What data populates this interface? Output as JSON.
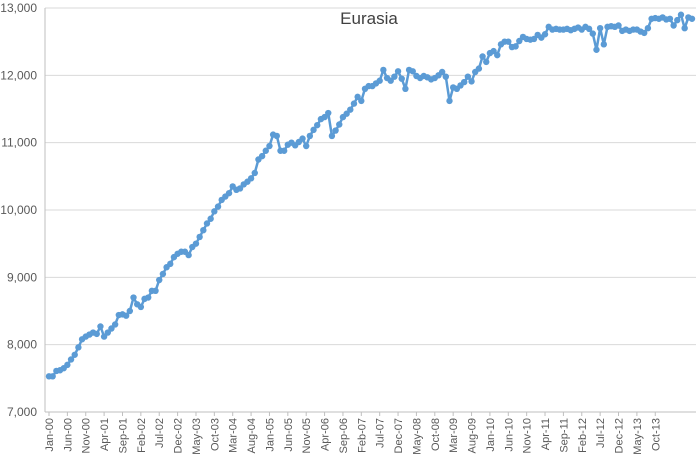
{
  "chart_data": {
    "type": "line",
    "title": "Eurasia",
    "xlabel": "",
    "ylabel": "",
    "ylim": [
      7000,
      13000
    ],
    "y_ticks": [
      "7,000",
      "8,000",
      "9,000",
      "10,000",
      "11,000",
      "12,000",
      "13,000"
    ],
    "x_tick_labels": [
      "Jan-00",
      "Jun-00",
      "Nov-00",
      "Apr-01",
      "Sep-01",
      "Feb-02",
      "Jul-02",
      "Dec-02",
      "May-03",
      "Oct-03",
      "Mar-04",
      "Aug-04",
      "Jan-05",
      "Jun-05",
      "Nov-05",
      "Apr-06",
      "Sep-06",
      "Feb-07",
      "Jul-07",
      "Dec-07",
      "May-08",
      "Oct-08",
      "Mar-09",
      "Aug-09",
      "Jan-10",
      "Jun-10",
      "Nov-10",
      "Apr-11",
      "Sep-11",
      "Feb-12",
      "Jul-12",
      "Dec-12",
      "May-13",
      "Oct-13"
    ],
    "x_start": "Jan-00",
    "grid": true,
    "line_color": "#5b9bd5",
    "series": [
      {
        "values": [
          7530,
          7530,
          7610,
          7620,
          7650,
          7700,
          7780,
          7850,
          7960,
          8080,
          8120,
          8150,
          8180,
          8160,
          8270,
          8120,
          8180,
          8240,
          8300,
          8440,
          8450,
          8430,
          8500,
          8700,
          8600,
          8560,
          8680,
          8700,
          8800,
          8800,
          8960,
          9050,
          9150,
          9200,
          9300,
          9350,
          9380,
          9380,
          9330,
          9450,
          9500,
          9600,
          9700,
          9800,
          9870,
          9980,
          10050,
          10150,
          10200,
          10250,
          10350,
          10300,
          10320,
          10380,
          10420,
          10470,
          10550,
          10750,
          10800,
          10880,
          10950,
          11120,
          11100,
          10880,
          10880,
          10970,
          11000,
          10960,
          11010,
          11060,
          10950,
          11100,
          11190,
          11260,
          11350,
          11380,
          11440,
          11100,
          11180,
          11270,
          11380,
          11430,
          11490,
          11580,
          11680,
          11620,
          11800,
          11840,
          11840,
          11880,
          11920,
          12080,
          11960,
          11920,
          11980,
          12060,
          11950,
          11800,
          12080,
          12060,
          11990,
          11960,
          11990,
          11970,
          11940,
          11960,
          12000,
          12050,
          11980,
          11620,
          11820,
          11800,
          11850,
          11900,
          11980,
          11910,
          12050,
          12100,
          12280,
          12200,
          12330,
          12360,
          12300,
          12460,
          12500,
          12500,
          12420,
          12430,
          12510,
          12570,
          12540,
          12530,
          12540,
          12600,
          12560,
          12610,
          12720,
          12680,
          12690,
          12680,
          12680,
          12690,
          12670,
          12690,
          12710,
          12680,
          12720,
          12690,
          12620,
          12380,
          12700,
          12460,
          12720,
          12730,
          12720,
          12740,
          12660,
          12680,
          12660,
          12680,
          12680,
          12650,
          12630,
          12700,
          12840,
          12850,
          12840,
          12860,
          12830,
          12840,
          12740,
          12820,
          12900,
          12700,
          12860,
          12840
        ]
      }
    ]
  }
}
